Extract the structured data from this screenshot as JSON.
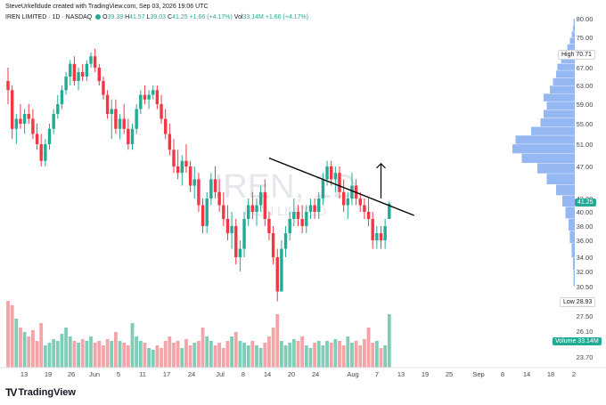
{
  "header": {
    "credit": "SteveUrkelldude created with TradingView.com, Sep 03, 2026 19:06 UTC",
    "symbol": "IREN LIMITED · 1D · NASDAQ",
    "o_label": "O",
    "o_value": "39.39",
    "h_label": "H",
    "h_value": "41.57",
    "l_label": "L",
    "l_value": "39.03",
    "c_label": "C",
    "c_value": "41.25",
    "change": "+1.66 (+4.17%)",
    "vol_label": "Vol",
    "vol_value": "33.14M",
    "vol_change": "+1.66 (+4.17%)"
  },
  "watermark": {
    "ticker": "IREN, 1D",
    "name": "IREN LIMITED"
  },
  "badges": {
    "high_label": "High",
    "high_value": "70.71",
    "low_label": "Low",
    "low_value": "28.93",
    "price": "41.25",
    "volume_label": "Volume",
    "volume_value": "33.14M"
  },
  "footer": {
    "brand": "TradingView",
    "logo_mark": "TV"
  },
  "colors": {
    "up": "#22ab94",
    "down": "#f23645",
    "up_vol": "#7ecdb7",
    "down_vol": "#f4a3a6",
    "profile": "#7aa6ef"
  },
  "chart_data": {
    "type": "candlestick",
    "price_axis": [
      "80.00",
      "75.00",
      "67.00",
      "63.00",
      "59.00",
      "55.00",
      "51.00",
      "47.00",
      "42.00",
      "40.00",
      "38.00",
      "36.00",
      "34.00",
      "32.00",
      "30.50",
      "27.50",
      "26.10",
      "23.70"
    ],
    "x_ticks": [
      "13",
      "19",
      "26",
      "Jun",
      "5",
      "11",
      "17",
      "24",
      "Jul",
      "8",
      "14",
      "20",
      "24",
      "Aug",
      "7",
      "13",
      "19",
      "25",
      "Sep",
      "8",
      "14",
      "18",
      "2"
    ],
    "candles": [
      {
        "o": 64,
        "h": 67,
        "l": 59,
        "c": 62
      },
      {
        "o": 62,
        "h": 63,
        "l": 52,
        "c": 54
      },
      {
        "o": 54,
        "h": 57,
        "l": 51,
        "c": 56
      },
      {
        "o": 56,
        "h": 59,
        "l": 54,
        "c": 55
      },
      {
        "o": 55,
        "h": 58,
        "l": 53,
        "c": 57
      },
      {
        "o": 57,
        "h": 59,
        "l": 55,
        "c": 56
      },
      {
        "o": 56,
        "h": 58,
        "l": 52,
        "c": 53
      },
      {
        "o": 53,
        "h": 55,
        "l": 50,
        "c": 51
      },
      {
        "o": 51,
        "h": 53,
        "l": 47,
        "c": 48
      },
      {
        "o": 48,
        "h": 52,
        "l": 47,
        "c": 51
      },
      {
        "o": 51,
        "h": 55,
        "l": 50,
        "c": 54
      },
      {
        "o": 54,
        "h": 58,
        "l": 53,
        "c": 57
      },
      {
        "o": 57,
        "h": 61,
        "l": 56,
        "c": 59
      },
      {
        "o": 59,
        "h": 63,
        "l": 58,
        "c": 62
      },
      {
        "o": 62,
        "h": 66,
        "l": 61,
        "c": 65
      },
      {
        "o": 65,
        "h": 69,
        "l": 63,
        "c": 68
      },
      {
        "o": 68,
        "h": 70,
        "l": 63,
        "c": 64
      },
      {
        "o": 64,
        "h": 67,
        "l": 62,
        "c": 66
      },
      {
        "o": 66,
        "h": 68,
        "l": 64,
        "c": 65
      },
      {
        "o": 65,
        "h": 69,
        "l": 64,
        "c": 68
      },
      {
        "o": 68,
        "h": 71,
        "l": 67,
        "c": 70
      },
      {
        "o": 70,
        "h": 72,
        "l": 66,
        "c": 67
      },
      {
        "o": 67,
        "h": 68,
        "l": 63,
        "c": 64
      },
      {
        "o": 64,
        "h": 65,
        "l": 60,
        "c": 61
      },
      {
        "o": 61,
        "h": 62,
        "l": 56,
        "c": 57
      },
      {
        "o": 57,
        "h": 60,
        "l": 52,
        "c": 58
      },
      {
        "o": 58,
        "h": 60,
        "l": 53,
        "c": 54
      },
      {
        "o": 54,
        "h": 57,
        "l": 52,
        "c": 56
      },
      {
        "o": 56,
        "h": 59,
        "l": 53,
        "c": 54
      },
      {
        "o": 54,
        "h": 56,
        "l": 50,
        "c": 51
      },
      {
        "o": 51,
        "h": 55,
        "l": 50,
        "c": 54
      },
      {
        "o": 54,
        "h": 59,
        "l": 53,
        "c": 58
      },
      {
        "o": 58,
        "h": 62,
        "l": 57,
        "c": 61
      },
      {
        "o": 61,
        "h": 63,
        "l": 59,
        "c": 60
      },
      {
        "o": 60,
        "h": 62,
        "l": 58,
        "c": 61
      },
      {
        "o": 61,
        "h": 63,
        "l": 60,
        "c": 62
      },
      {
        "o": 62,
        "h": 63,
        "l": 58,
        "c": 59
      },
      {
        "o": 59,
        "h": 61,
        "l": 55,
        "c": 56
      },
      {
        "o": 56,
        "h": 58,
        "l": 52,
        "c": 53
      },
      {
        "o": 53,
        "h": 55,
        "l": 49,
        "c": 50
      },
      {
        "o": 50,
        "h": 52,
        "l": 46,
        "c": 47
      },
      {
        "o": 47,
        "h": 50,
        "l": 45,
        "c": 46
      },
      {
        "o": 46,
        "h": 49,
        "l": 44,
        "c": 48
      },
      {
        "o": 48,
        "h": 51,
        "l": 46,
        "c": 47
      },
      {
        "o": 47,
        "h": 48,
        "l": 43,
        "c": 44
      },
      {
        "o": 44,
        "h": 47,
        "l": 42,
        "c": 45
      },
      {
        "o": 45,
        "h": 46,
        "l": 40,
        "c": 41
      },
      {
        "o": 41,
        "h": 42,
        "l": 37,
        "c": 38
      },
      {
        "o": 38,
        "h": 43,
        "l": 37,
        "c": 42
      },
      {
        "o": 42,
        "h": 46,
        "l": 41,
        "c": 45
      },
      {
        "o": 45,
        "h": 47,
        "l": 42,
        "c": 43
      },
      {
        "o": 43,
        "h": 45,
        "l": 40,
        "c": 41
      },
      {
        "o": 41,
        "h": 43,
        "l": 38,
        "c": 39
      },
      {
        "o": 39,
        "h": 41,
        "l": 36,
        "c": 37
      },
      {
        "o": 37,
        "h": 40,
        "l": 35,
        "c": 38
      },
      {
        "o": 38,
        "h": 39,
        "l": 33,
        "c": 34
      },
      {
        "o": 34,
        "h": 36,
        "l": 32,
        "c": 35
      },
      {
        "o": 35,
        "h": 40,
        "l": 34,
        "c": 39
      },
      {
        "o": 39,
        "h": 42,
        "l": 38,
        "c": 41
      },
      {
        "o": 41,
        "h": 43,
        "l": 39,
        "c": 40
      },
      {
        "o": 40,
        "h": 42,
        "l": 38,
        "c": 41
      },
      {
        "o": 41,
        "h": 44,
        "l": 40,
        "c": 43
      },
      {
        "o": 43,
        "h": 45,
        "l": 38,
        "c": 39
      },
      {
        "o": 39,
        "h": 40,
        "l": 36,
        "c": 37
      },
      {
        "o": 37,
        "h": 38,
        "l": 33,
        "c": 34
      },
      {
        "o": 34,
        "h": 35,
        "l": 29,
        "c": 30
      },
      {
        "o": 30,
        "h": 36,
        "l": 30,
        "c": 35
      },
      {
        "o": 35,
        "h": 38,
        "l": 34,
        "c": 37
      },
      {
        "o": 37,
        "h": 40,
        "l": 36,
        "c": 39
      },
      {
        "o": 39,
        "h": 42,
        "l": 38,
        "c": 40
      },
      {
        "o": 40,
        "h": 41,
        "l": 38,
        "c": 39
      },
      {
        "o": 39,
        "h": 41,
        "l": 37,
        "c": 38
      },
      {
        "o": 38,
        "h": 41,
        "l": 37,
        "c": 40
      },
      {
        "o": 40,
        "h": 42,
        "l": 39,
        "c": 41
      },
      {
        "o": 41,
        "h": 42,
        "l": 39,
        "c": 40
      },
      {
        "o": 40,
        "h": 43,
        "l": 39,
        "c": 42
      },
      {
        "o": 42,
        "h": 46,
        "l": 41,
        "c": 45
      },
      {
        "o": 45,
        "h": 48,
        "l": 44,
        "c": 47
      },
      {
        "o": 47,
        "h": 48,
        "l": 44,
        "c": 45
      },
      {
        "o": 45,
        "h": 47,
        "l": 43,
        "c": 46
      },
      {
        "o": 46,
        "h": 47,
        "l": 42,
        "c": 43
      },
      {
        "o": 43,
        "h": 45,
        "l": 40,
        "c": 41
      },
      {
        "o": 41,
        "h": 43,
        "l": 39,
        "c": 42
      },
      {
        "o": 42,
        "h": 46,
        "l": 41,
        "c": 44
      },
      {
        "o": 44,
        "h": 45,
        "l": 41,
        "c": 42
      },
      {
        "o": 42,
        "h": 43,
        "l": 40,
        "c": 41
      },
      {
        "o": 41,
        "h": 42,
        "l": 39,
        "c": 40
      },
      {
        "o": 40,
        "h": 42,
        "l": 38,
        "c": 39
      },
      {
        "o": 39,
        "h": 40,
        "l": 35,
        "c": 36
      },
      {
        "o": 36,
        "h": 38,
        "l": 35,
        "c": 37
      },
      {
        "o": 37,
        "h": 38,
        "l": 35,
        "c": 36
      },
      {
        "o": 36,
        "h": 39,
        "l": 35,
        "c": 38
      },
      {
        "o": 39,
        "h": 41.57,
        "l": 39.03,
        "c": 41.25
      }
    ],
    "volume_relative": [
      0.75,
      0.7,
      0.55,
      0.45,
      0.4,
      0.35,
      0.42,
      0.3,
      0.5,
      0.25,
      0.28,
      0.32,
      0.3,
      0.38,
      0.45,
      0.35,
      0.3,
      0.28,
      0.32,
      0.3,
      0.35,
      0.28,
      0.3,
      0.25,
      0.32,
      0.3,
      0.4,
      0.3,
      0.28,
      0.25,
      0.5,
      0.35,
      0.3,
      0.28,
      0.22,
      0.2,
      0.25,
      0.22,
      0.3,
      0.35,
      0.28,
      0.3,
      0.22,
      0.32,
      0.25,
      0.28,
      0.3,
      0.45,
      0.35,
      0.3,
      0.25,
      0.28,
      0.22,
      0.3,
      0.35,
      0.4,
      0.3,
      0.28,
      0.25,
      0.3,
      0.25,
      0.22,
      0.28,
      0.35,
      0.45,
      0.6,
      0.3,
      0.25,
      0.28,
      0.32,
      0.3,
      0.35,
      0.25,
      0.22,
      0.28,
      0.3,
      0.25,
      0.3,
      0.28,
      0.32,
      0.3,
      0.25,
      0.35,
      0.28,
      0.3,
      0.25,
      0.32,
      0.45,
      0.28,
      0.3,
      0.22,
      0.25,
      0.6,
      0.35,
      0.3,
      0.28,
      0.35
    ],
    "trendline": {
      "from_bar": 63,
      "from_price": 48.5,
      "to_bar": 98,
      "to_price": 39.5
    },
    "volume_profile_price_range": [
      30.5,
      80
    ],
    "volume_profile_values": [
      0.02,
      0.03,
      0.05,
      0.08,
      0.1,
      0.15,
      0.2,
      0.3,
      0.45,
      0.6,
      0.85,
      1.0,
      0.95,
      0.7,
      0.55,
      0.5,
      0.45,
      0.5,
      0.4,
      0.35,
      0.3,
      0.28,
      0.22,
      0.18,
      0.12,
      0.08,
      0.05,
      0.03,
      0.02
    ]
  }
}
